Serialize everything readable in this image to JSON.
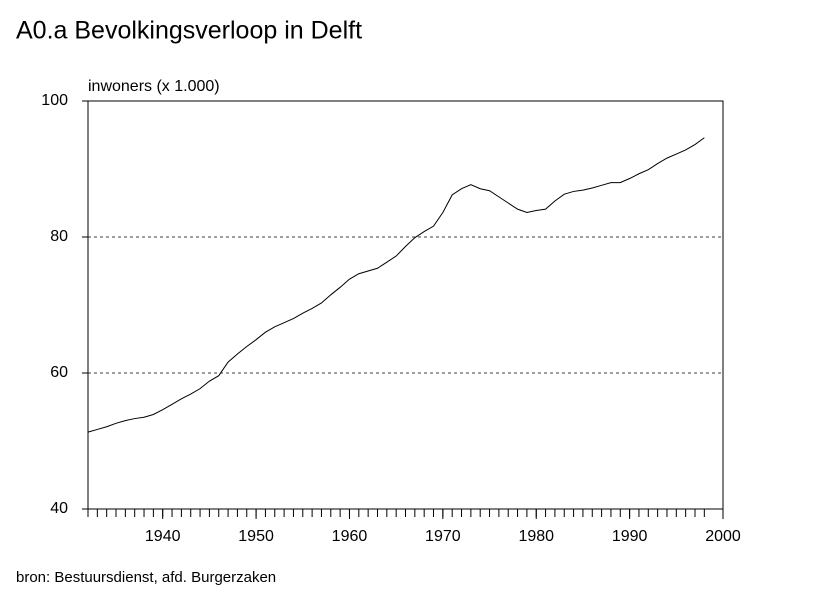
{
  "chart_data": {
    "type": "line",
    "title": "A0.a   Bevolkingsverloop in Delft",
    "y_label": "inwoners (x 1.000)",
    "source": "bron: Bestuursdienst, afd. Burgerzaken",
    "x": [
      1932,
      1933,
      1934,
      1935,
      1936,
      1937,
      1938,
      1939,
      1940,
      1941,
      1942,
      1943,
      1944,
      1945,
      1946,
      1947,
      1948,
      1949,
      1950,
      1951,
      1952,
      1953,
      1954,
      1955,
      1956,
      1957,
      1958,
      1959,
      1960,
      1961,
      1962,
      1963,
      1964,
      1965,
      1966,
      1967,
      1968,
      1969,
      1970,
      1971,
      1972,
      1973,
      1974,
      1975,
      1976,
      1977,
      1978,
      1979,
      1980,
      1981,
      1982,
      1983,
      1984,
      1985,
      1986,
      1987,
      1988,
      1989,
      1990,
      1991,
      1992,
      1993,
      1994,
      1995,
      1996,
      1997,
      1998
    ],
    "series": [
      {
        "color": "#000000",
        "values": [
          51.3,
          51.7,
          52.1,
          52.6,
          53.0,
          53.3,
          53.5,
          53.9,
          54.6,
          55.4,
          56.2,
          56.9,
          57.7,
          58.8,
          59.6,
          61.6,
          62.8,
          63.9,
          64.9,
          66.0,
          66.8,
          67.4,
          68.0,
          68.8,
          69.5,
          70.3,
          71.5,
          72.6,
          73.8,
          74.6,
          75.0,
          75.4,
          76.3,
          77.2,
          78.6,
          79.9,
          80.8,
          81.6,
          83.6,
          86.2,
          87.1,
          87.7,
          87.1,
          86.8,
          85.9,
          85.0,
          84.1,
          83.6,
          83.9,
          84.1,
          85.3,
          86.3,
          86.7,
          86.9,
          87.2,
          87.6,
          88.0,
          88.0,
          88.6,
          89.3,
          89.9,
          90.8,
          91.6,
          92.2,
          92.8,
          93.6,
          94.6
        ]
      }
    ],
    "xlim": [
      1932,
      2000
    ],
    "xticks": [
      1940,
      1950,
      1960,
      1970,
      1980,
      1990,
      2000
    ],
    "ylim": [
      40,
      100
    ],
    "yticks": [
      40,
      60,
      80,
      100
    ],
    "grid": true
  }
}
